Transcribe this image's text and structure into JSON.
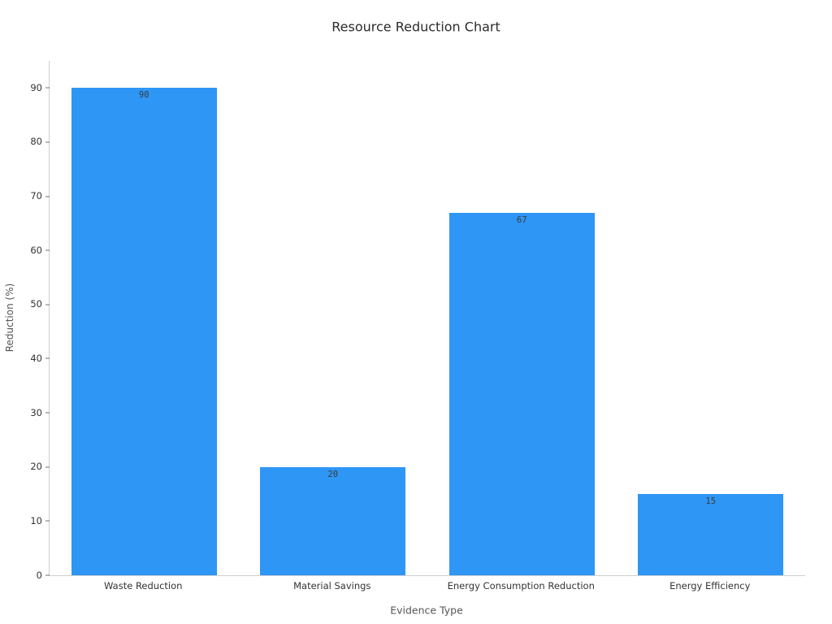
{
  "chart_data": {
    "type": "bar",
    "title": "Resource Reduction Chart",
    "xlabel": "Evidence Type",
    "ylabel": "Reduction (%)",
    "categories": [
      "Waste Reduction",
      "Material Savings",
      "Energy Consumption Reduction",
      "Energy Efficiency"
    ],
    "values": [
      90,
      20,
      67,
      15
    ],
    "bar_labels": [
      "90",
      "20",
      "67",
      "15"
    ],
    "yticks": [
      0,
      10,
      20,
      30,
      40,
      50,
      60,
      70,
      80,
      90
    ],
    "ylim": [
      0,
      95
    ],
    "grid": false,
    "legend": "none",
    "bar_color": "#2E96F5",
    "value_label_color": "#3a3a3a",
    "axis_color": "#cfcfcf",
    "tick_mark_color": "#707070",
    "tick_text_color": "#333333",
    "axis_title_color": "#555555",
    "title_color": "#2b2b2b"
  }
}
